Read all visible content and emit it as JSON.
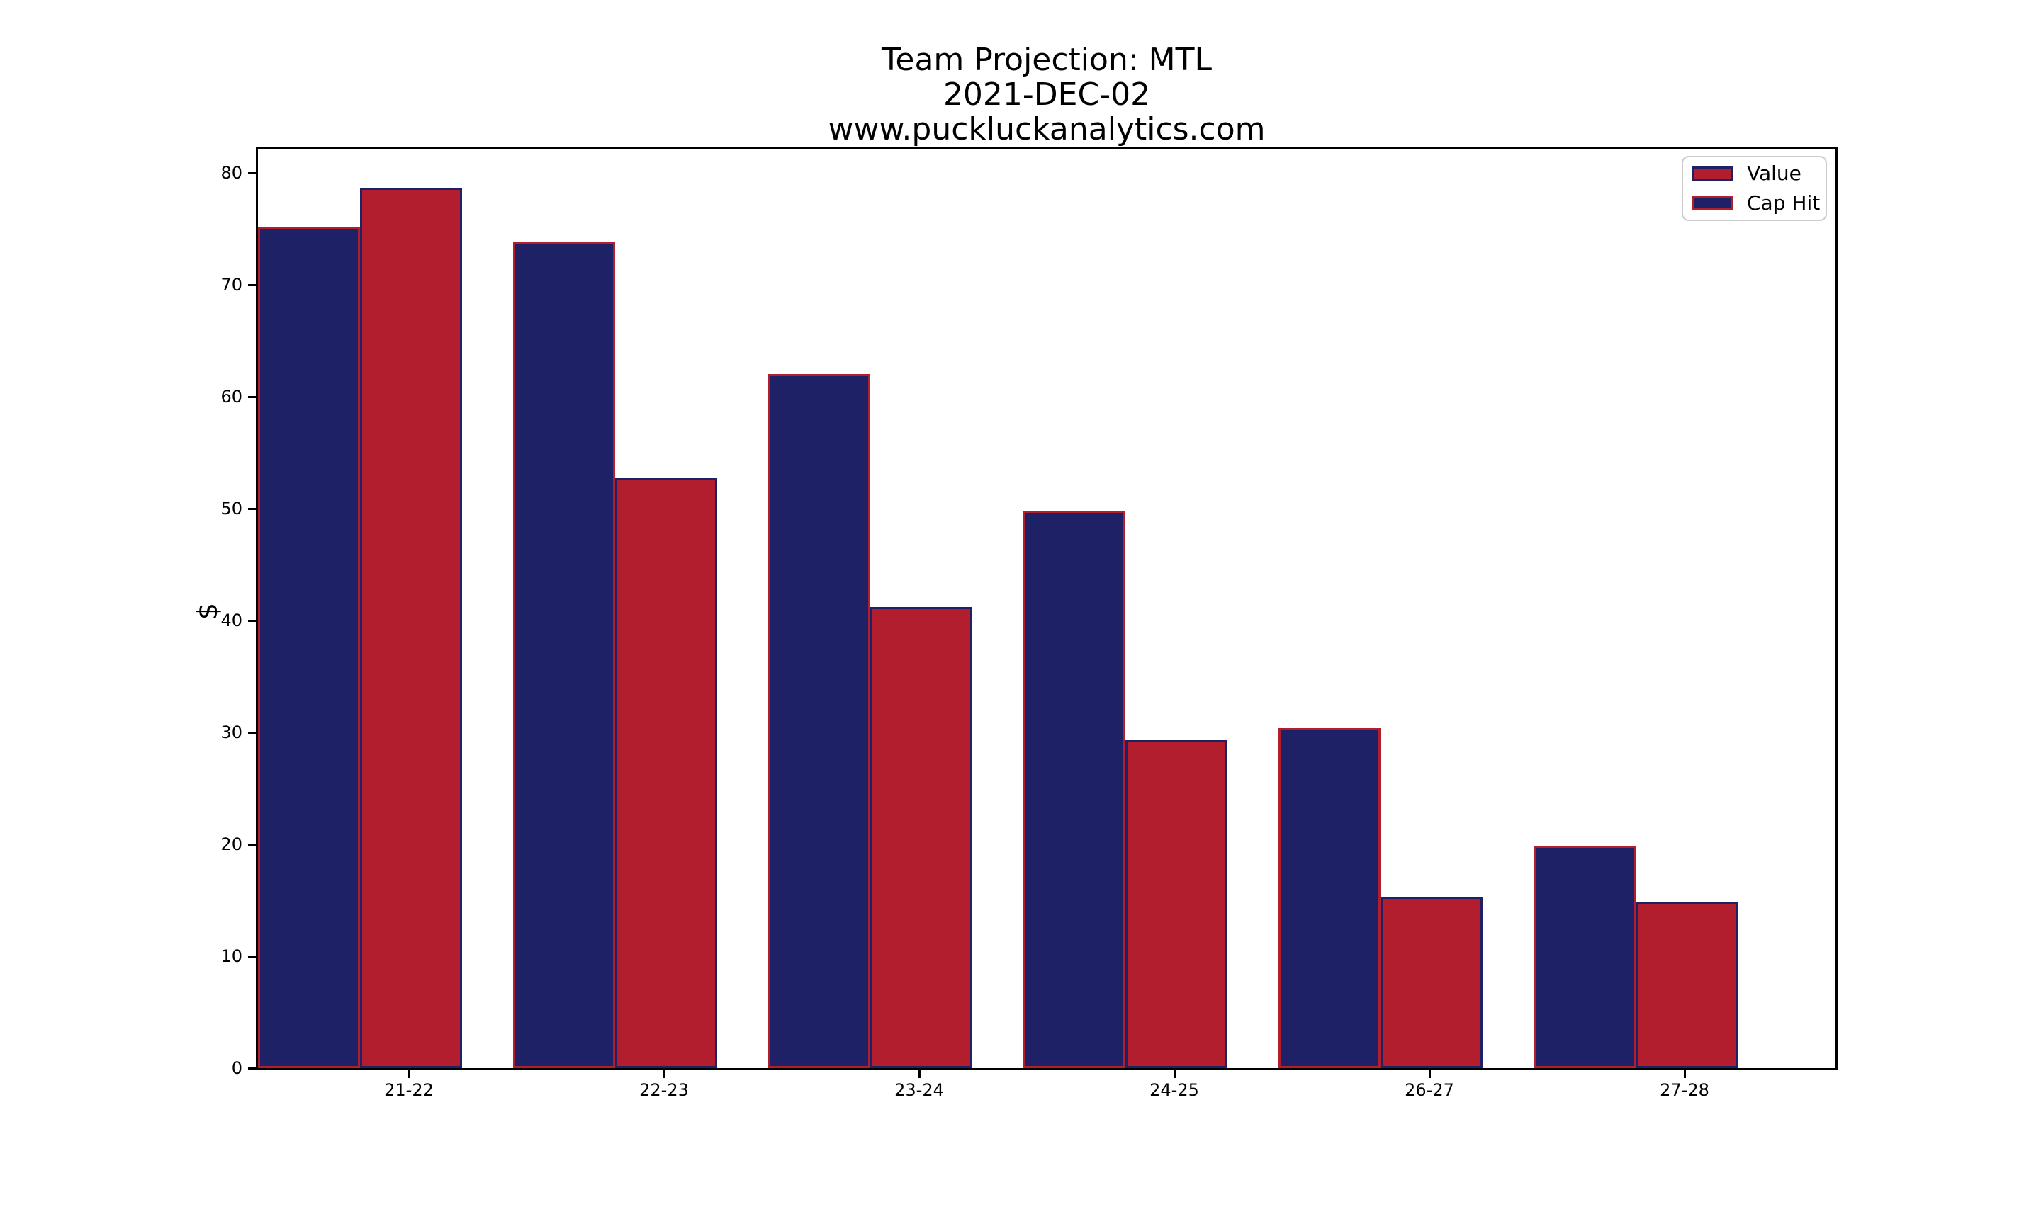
{
  "title": {
    "lines": [
      "Team Projection: MTL",
      "2021-DEC-02",
      "www.puckluckanalytics.com"
    ]
  },
  "chart_data": {
    "type": "bar",
    "title": "Team Projection: MTL",
    "subtitle": "2021-DEC-02",
    "watermark": "www.puckluckanalytics.com",
    "categories": [
      "21-22",
      "22-23",
      "23-24",
      "24-25",
      "26-27",
      "27-28"
    ],
    "series": [
      {
        "name": "Value",
        "fill": "#B21E2D",
        "edge": "#1F2166",
        "values": [
          78.7,
          52.7,
          41.2,
          29.3,
          15.3,
          14.9
        ]
      },
      {
        "name": "Cap Hit",
        "fill": "#1F2166",
        "edge": "#B21E2D",
        "values": [
          75.2,
          73.8,
          62.0,
          49.8,
          30.4,
          19.9
        ]
      }
    ],
    "group_order": [
      "Cap Hit",
      "Value"
    ],
    "xlabel": "",
    "ylabel": "$",
    "ylim": [
      0,
      82.5
    ],
    "yticks": [
      0,
      10,
      20,
      30,
      40,
      50,
      60,
      70,
      80
    ],
    "grid": false,
    "legend": {
      "position": "upper-right",
      "entries": [
        "Value",
        "Cap Hit"
      ]
    }
  },
  "colors": {
    "axis": "#000000",
    "text": "#000000",
    "legend_border": "#cccccc",
    "background": "#ffffff"
  }
}
